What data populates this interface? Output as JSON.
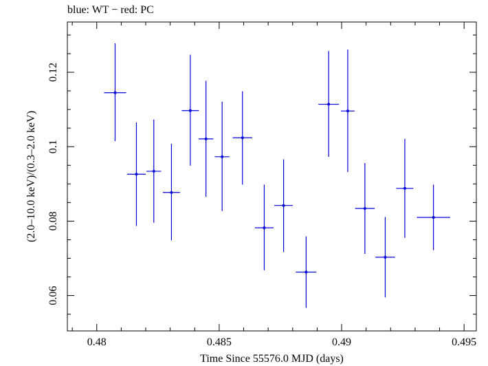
{
  "chart_data": {
    "type": "scatter",
    "title": "blue: WT − red: PC",
    "xlabel": "Time Since 55576.0 MJD (days)",
    "ylabel": "(2.0–10.0 keV)/(0.3–2.0 keV)",
    "xlim": [
      0.4788,
      0.4955
    ],
    "ylim": [
      0.0505,
      0.1335
    ],
    "x_ticks": [
      0.48,
      0.485,
      0.49,
      0.495
    ],
    "x_tick_labels": [
      "0.48",
      "0.485",
      "0.49",
      "0.495"
    ],
    "y_ticks": [
      0.06,
      0.08,
      0.1,
      0.12
    ],
    "y_tick_labels": [
      "0.06",
      "0.08",
      "0.1",
      "0.12"
    ],
    "grid": false,
    "colors": {
      "series": "#0000dd",
      "axis": "#000000"
    },
    "series": [
      {
        "points": [
          {
            "x": 0.48075,
            "xerr": 0.00045,
            "y": 0.1145,
            "ylo": 0.1015,
            "yhi": 0.1278
          },
          {
            "x": 0.48162,
            "xerr": 0.00038,
            "y": 0.0926,
            "ylo": 0.0787,
            "yhi": 0.1065
          },
          {
            "x": 0.48233,
            "xerr": 0.0003,
            "y": 0.0934,
            "ylo": 0.0796,
            "yhi": 0.1073
          },
          {
            "x": 0.48305,
            "xerr": 0.00035,
            "y": 0.0877,
            "ylo": 0.0748,
            "yhi": 0.1008
          },
          {
            "x": 0.48382,
            "xerr": 0.00035,
            "y": 0.1097,
            "ylo": 0.0949,
            "yhi": 0.1247
          },
          {
            "x": 0.48446,
            "xerr": 0.0003,
            "y": 0.1021,
            "ylo": 0.0865,
            "yhi": 0.1177
          },
          {
            "x": 0.48512,
            "xerr": 0.0003,
            "y": 0.0973,
            "ylo": 0.0827,
            "yhi": 0.1121
          },
          {
            "x": 0.48595,
            "xerr": 0.0004,
            "y": 0.1024,
            "ylo": 0.0898,
            "yhi": 0.1149
          },
          {
            "x": 0.48684,
            "xerr": 0.00038,
            "y": 0.0782,
            "ylo": 0.0668,
            "yhi": 0.0898
          },
          {
            "x": 0.48763,
            "xerr": 0.00038,
            "y": 0.0842,
            "ylo": 0.0717,
            "yhi": 0.0966
          },
          {
            "x": 0.48855,
            "xerr": 0.00042,
            "y": 0.0663,
            "ylo": 0.0567,
            "yhi": 0.0759
          },
          {
            "x": 0.48947,
            "xerr": 0.00042,
            "y": 0.1114,
            "ylo": 0.0973,
            "yhi": 0.1257
          },
          {
            "x": 0.49025,
            "xerr": 0.00028,
            "y": 0.1096,
            "ylo": 0.0932,
            "yhi": 0.1261
          },
          {
            "x": 0.49095,
            "xerr": 0.0004,
            "y": 0.0834,
            "ylo": 0.0712,
            "yhi": 0.0956
          },
          {
            "x": 0.49178,
            "xerr": 0.0004,
            "y": 0.0703,
            "ylo": 0.0595,
            "yhi": 0.0811
          },
          {
            "x": 0.49258,
            "xerr": 0.00035,
            "y": 0.0888,
            "ylo": 0.0755,
            "yhi": 0.1021
          },
          {
            "x": 0.49375,
            "xerr": 0.00068,
            "y": 0.081,
            "ylo": 0.0722,
            "yhi": 0.0898
          }
        ]
      }
    ]
  }
}
